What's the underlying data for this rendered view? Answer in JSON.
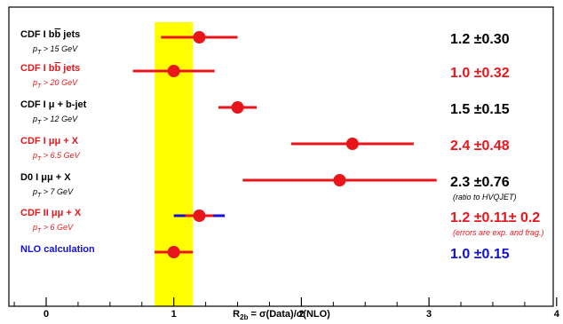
{
  "chart_data": {
    "type": "scatter",
    "title": "",
    "xlabel": "R_2b = σ(Data)/σ(NLO)",
    "xlabel_parts": {
      "main": "R",
      "sub": "2b",
      "rest": " = σ(Data)/σ(NLO)"
    },
    "xlim": [
      -0.25,
      4.05
    ],
    "x_ticks": [
      "0",
      "1",
      "2",
      "3",
      "4"
    ],
    "x_tick_values": [
      0,
      1,
      2,
      3,
      4
    ],
    "grid": false,
    "band": {
      "from": 0.85,
      "to": 1.15,
      "color": "#ffff00"
    },
    "rows": [
      {
        "experiment": "CDF I",
        "process": "bb̄ jets",
        "cut": "p_T > 15 GeV",
        "value": 1.2,
        "err": 0.3,
        "label_color": "#000000",
        "point_color": "#e8161b",
        "bar_color": "#e8161b",
        "result": "1.2 ±0.30",
        "result_color": "#000000",
        "note": ""
      },
      {
        "experiment": "CDF I",
        "process": "bb̄ jets",
        "cut": "p_T > 20 GeV",
        "value": 1.0,
        "err": 0.32,
        "label_color": "#e8161b",
        "point_color": "#e8161b",
        "bar_color": "#e8161b",
        "result": "1.0 ±0.32",
        "result_color": "#e8161b",
        "note": ""
      },
      {
        "experiment": "CDF I",
        "process": "μ + b-jet",
        "cut": "p_T > 12 GeV",
        "value": 1.5,
        "err": 0.15,
        "label_color": "#000000",
        "point_color": "#e8161b",
        "bar_color": "#e8161b",
        "result": "1.5 ±0.15",
        "result_color": "#000000",
        "note": ""
      },
      {
        "experiment": "CDF I",
        "process": "μμ + X",
        "cut": "p_T > 6.5 GeV",
        "value": 2.4,
        "err": 0.48,
        "label_color": "#e8161b",
        "point_color": "#e8161b",
        "bar_color": "#e8161b",
        "result": "2.4 ±0.48",
        "result_color": "#e8161b",
        "note": ""
      },
      {
        "experiment": "D0 I",
        "process": "μμ + X",
        "cut": "p_T > 7 GeV",
        "value": 2.3,
        "err": 0.76,
        "label_color": "#000000",
        "point_color": "#e8161b",
        "bar_color": "#e8161b",
        "result": "2.3 ±0.76",
        "result_color": "#000000",
        "note": "(ratio to HVQJET)"
      },
      {
        "experiment": "CDF II",
        "process": "μμ + X",
        "cut": "p_T > 6 GeV",
        "value": 1.2,
        "err": 0.11,
        "err_total": 0.2,
        "label_color": "#e8161b",
        "point_color": "#e8161b",
        "bar_color": "#e8161b",
        "bar_color_outer": "#1010d8",
        "result": "1.2 ±0.11± 0.2",
        "result_color": "#e8161b",
        "note": "(errors are exp. and frag.)"
      },
      {
        "experiment": "NLO calculation",
        "process": "",
        "cut": "",
        "value": 1.0,
        "err": 0.15,
        "label_color": "#1010d8",
        "point_color": "#e8161b",
        "bar_color": "#e8161b",
        "result": "1.0 ±0.15",
        "result_color": "#1010d8",
        "note": ""
      }
    ]
  }
}
